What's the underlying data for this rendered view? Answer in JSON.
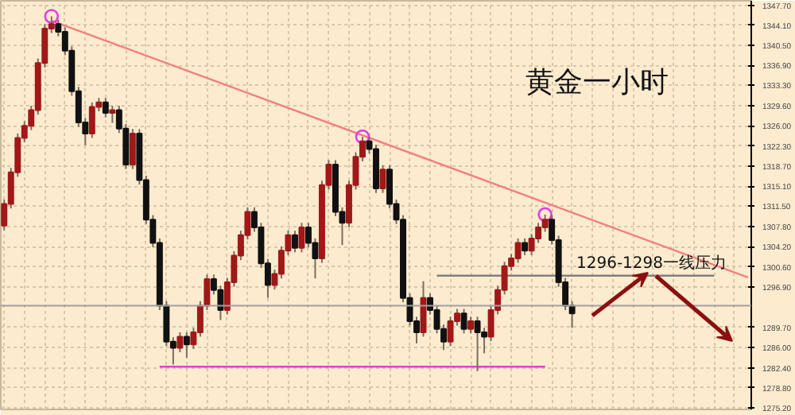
{
  "chart_data": {
    "type": "candlestick",
    "title": "黄金一小时",
    "annotations": [
      "1296-1298一线压力"
    ],
    "categories": [
      null,
      null,
      null,
      null,
      null,
      null,
      null,
      null,
      null,
      null,
      null,
      null,
      null,
      null,
      null,
      null,
      null,
      null,
      null,
      null,
      null,
      null,
      null,
      null,
      null,
      null,
      null,
      null,
      null,
      null,
      null,
      null,
      null,
      null,
      null,
      null,
      null,
      null,
      null,
      null,
      null,
      null,
      null,
      null,
      null,
      null,
      null,
      null,
      null,
      null,
      null,
      null,
      null,
      null,
      null,
      null,
      null,
      null,
      null,
      null,
      null,
      null,
      null,
      null,
      null,
      null,
      null,
      null,
      null,
      null,
      null,
      null,
      null,
      null,
      null,
      null,
      null,
      null,
      null,
      null,
      null,
      null,
      null,
      null,
      null,
      null,
      null,
      null,
      null,
      null,
      null,
      null,
      null,
      null,
      null,
      null,
      null,
      null,
      null,
      null,
      null,
      null,
      null,
      null,
      null,
      null,
      null,
      null,
      null,
      null,
      null
    ],
    "ohlc": [
      [
        1308.0,
        1312.7,
        1307.2,
        1311.9
      ],
      [
        1311.9,
        1318.4,
        1311.1,
        1317.6
      ],
      [
        1317.6,
        1324.6,
        1316.8,
        1323.8
      ],
      [
        1323.8,
        1326.8,
        1323.0,
        1326.0
      ],
      [
        1326.0,
        1329.6,
        1325.2,
        1328.8
      ],
      [
        1328.8,
        1338.1,
        1328.0,
        1337.3
      ],
      [
        1337.3,
        1344.3,
        1336.5,
        1343.5
      ],
      [
        1343.5,
        1345.7,
        1342.7,
        1344.3
      ],
      [
        1344.3,
        1345.1,
        1342.1,
        1342.9
      ],
      [
        1342.9,
        1343.7,
        1338.7,
        1339.5
      ],
      [
        1339.5,
        1340.3,
        1331.4,
        1332.2
      ],
      [
        1332.2,
        1333.0,
        1325.8,
        1326.6
      ],
      [
        1326.6,
        1327.4,
        1322.5,
        1324.6
      ],
      [
        1324.6,
        1330.2,
        1323.8,
        1329.4
      ],
      [
        1329.4,
        1331.0,
        1328.6,
        1330.2
      ],
      [
        1330.2,
        1331.0,
        1327.5,
        1328.3
      ],
      [
        1328.3,
        1329.6,
        1326.5,
        1328.8
      ],
      [
        1328.8,
        1329.6,
        1324.7,
        1325.5
      ],
      [
        1325.5,
        1326.3,
        1318.2,
        1319.0
      ],
      [
        1319.0,
        1325.4,
        1318.2,
        1324.6
      ],
      [
        1324.6,
        1325.4,
        1315.4,
        1316.2
      ],
      [
        1316.2,
        1317.0,
        1308.3,
        1309.1
      ],
      [
        1309.1,
        1309.9,
        1304.1,
        1304.9
      ],
      [
        1304.9,
        1305.7,
        1292.8,
        1293.6
      ],
      [
        1293.6,
        1294.4,
        1286.3,
        1287.1
      ],
      [
        1287.1,
        1287.9,
        1283.0,
        1286.0
      ],
      [
        1286.0,
        1288.8,
        1285.2,
        1288.0
      ],
      [
        1288.0,
        1288.8,
        1284.2,
        1286.6
      ],
      [
        1286.6,
        1289.6,
        1285.8,
        1288.8
      ],
      [
        1288.8,
        1294.4,
        1288.0,
        1293.6
      ],
      [
        1293.6,
        1299.2,
        1292.8,
        1298.4
      ],
      [
        1298.4,
        1299.2,
        1295.6,
        1296.4
      ],
      [
        1296.4,
        1297.2,
        1291.0,
        1292.8
      ],
      [
        1292.8,
        1298.6,
        1292.0,
        1297.8
      ],
      [
        1297.8,
        1303.4,
        1297.0,
        1302.6
      ],
      [
        1302.6,
        1307.1,
        1301.8,
        1306.3
      ],
      [
        1306.3,
        1311.3,
        1305.5,
        1310.5
      ],
      [
        1310.5,
        1311.3,
        1306.9,
        1307.7
      ],
      [
        1307.7,
        1308.5,
        1300.4,
        1301.2
      ],
      [
        1301.2,
        1302.0,
        1295.0,
        1297.3
      ],
      [
        1297.3,
        1300.1,
        1296.5,
        1299.3
      ],
      [
        1299.3,
        1304.3,
        1298.5,
        1303.5
      ],
      [
        1303.5,
        1307.1,
        1302.7,
        1306.3
      ],
      [
        1306.3,
        1307.1,
        1303.2,
        1304.0
      ],
      [
        1304.0,
        1308.5,
        1303.2,
        1307.7
      ],
      [
        1307.7,
        1308.5,
        1304.1,
        1304.9
      ],
      [
        1304.9,
        1305.7,
        1298.5,
        1302.1
      ],
      [
        1302.1,
        1316.1,
        1301.3,
        1315.3
      ],
      [
        1315.3,
        1319.8,
        1314.5,
        1319.0
      ],
      [
        1319.0,
        1319.8,
        1309.7,
        1310.5
      ],
      [
        1310.5,
        1311.3,
        1304.5,
        1308.5
      ],
      [
        1308.5,
        1316.1,
        1307.7,
        1315.3
      ],
      [
        1315.3,
        1321.2,
        1314.5,
        1320.4
      ],
      [
        1320.4,
        1324.0,
        1319.6,
        1323.2
      ],
      [
        1323.2,
        1324.0,
        1321.0,
        1321.8
      ],
      [
        1321.8,
        1322.6,
        1313.9,
        1314.7
      ],
      [
        1314.7,
        1318.9,
        1313.9,
        1318.1
      ],
      [
        1318.1,
        1318.9,
        1311.1,
        1311.9
      ],
      [
        1311.9,
        1312.7,
        1308.3,
        1309.1
      ],
      [
        1309.1,
        1309.9,
        1294.2,
        1295.0
      ],
      [
        1295.0,
        1295.8,
        1290.0,
        1290.8
      ],
      [
        1290.8,
        1291.6,
        1286.8,
        1288.8
      ],
      [
        1288.8,
        1298.0,
        1288.0,
        1295.0
      ],
      [
        1295.0,
        1295.8,
        1292.0,
        1292.8
      ],
      [
        1292.8,
        1293.6,
        1288.6,
        1289.4
      ],
      [
        1289.4,
        1290.2,
        1285.6,
        1287.1
      ],
      [
        1287.1,
        1291.6,
        1286.3,
        1290.8
      ],
      [
        1290.8,
        1293.0,
        1290.0,
        1292.2
      ],
      [
        1292.2,
        1293.0,
        1288.6,
        1289.4
      ],
      [
        1289.4,
        1291.6,
        1288.6,
        1290.8
      ],
      [
        1290.8,
        1291.6,
        1281.8,
        1288.8
      ],
      [
        1288.8,
        1289.6,
        1285.0,
        1288.0
      ],
      [
        1288.0,
        1293.6,
        1287.2,
        1292.8
      ],
      [
        1292.8,
        1297.2,
        1292.0,
        1296.4
      ],
      [
        1296.4,
        1301.5,
        1295.6,
        1300.7
      ],
      [
        1300.7,
        1302.9,
        1299.9,
        1302.1
      ],
      [
        1302.1,
        1305.7,
        1301.3,
        1304.9
      ],
      [
        1304.9,
        1305.7,
        1302.7,
        1303.5
      ],
      [
        1303.5,
        1306.5,
        1302.7,
        1305.7
      ],
      [
        1305.7,
        1308.5,
        1304.9,
        1307.7
      ],
      [
        1307.7,
        1310.0,
        1306.9,
        1309.1
      ],
      [
        1309.1,
        1309.9,
        1304.6,
        1305.4
      ],
      [
        1305.4,
        1306.2,
        1297.0,
        1297.8
      ],
      [
        1297.8,
        1298.6,
        1292.8,
        1293.6
      ],
      [
        1293.6,
        1294.4,
        1289.6,
        1292.2
      ],
      null,
      null,
      null,
      null,
      null,
      null,
      null,
      null,
      null,
      null,
      null,
      null,
      null,
      null,
      null,
      null,
      null,
      null,
      null,
      null,
      null,
      null,
      null,
      null,
      null,
      null
    ],
    "series": [
      {
        "type": "line",
        "color": "#f08080",
        "values": [
          null,
          null,
          null,
          null,
          null,
          null,
          null,
          1344.9,
          null,
          null,
          null,
          null,
          null,
          null,
          null,
          null,
          null,
          null,
          null,
          null,
          null,
          null,
          null,
          null,
          null,
          null,
          null,
          null,
          null,
          null,
          null,
          null,
          null,
          null,
          null,
          null,
          null,
          null,
          null,
          null,
          null,
          null,
          null,
          null,
          null,
          null,
          null,
          null,
          null,
          null,
          null,
          null,
          null,
          null,
          null,
          null,
          null,
          null,
          null,
          null,
          null,
          null,
          null,
          null,
          null,
          null,
          null,
          null,
          null,
          null,
          null,
          null,
          null,
          null,
          null,
          null,
          null,
          null,
          null,
          null,
          null,
          null,
          null,
          null,
          null,
          null,
          null,
          null,
          null,
          null,
          null,
          null,
          null,
          null,
          null,
          null,
          null,
          null,
          null,
          null,
          null,
          null,
          null,
          null,
          null,
          null,
          null,
          null,
          null,
          null,
          1298.7
        ]
      },
      {
        "type": "line",
        "color": "#808080",
        "values": [
          null,
          null,
          null,
          null,
          null,
          null,
          null,
          null,
          null,
          null,
          null,
          null,
          null,
          null,
          null,
          null,
          null,
          null,
          null,
          null,
          null,
          null,
          null,
          null,
          null,
          null,
          null,
          null,
          null,
          null,
          null,
          null,
          null,
          null,
          null,
          null,
          null,
          null,
          null,
          null,
          null,
          null,
          null,
          null,
          null,
          null,
          null,
          null,
          null,
          null,
          null,
          null,
          null,
          null,
          null,
          null,
          null,
          null,
          null,
          null,
          null,
          null,
          null,
          null,
          1299.0,
          null,
          null,
          null,
          null,
          null,
          null,
          null,
          null,
          null,
          null,
          null,
          null,
          null,
          null,
          null,
          null,
          null,
          null,
          null,
          null,
          null,
          null,
          null,
          null,
          null,
          null,
          null,
          null,
          null,
          null,
          null,
          null,
          null,
          null,
          null,
          null,
          null,
          null,
          null,
          null,
          1299.0,
          null,
          null,
          null,
          null,
          null
        ]
      },
      {
        "type": "line",
        "color": "#e040e0",
        "values": [
          null,
          null,
          null,
          null,
          null,
          null,
          null,
          null,
          null,
          null,
          null,
          null,
          null,
          null,
          null,
          null,
          null,
          null,
          null,
          null,
          null,
          null,
          null,
          1282.6,
          null,
          null,
          null,
          null,
          null,
          null,
          null,
          null,
          null,
          null,
          null,
          null,
          null,
          null,
          null,
          null,
          null,
          null,
          null,
          null,
          null,
          null,
          null,
          null,
          null,
          null,
          null,
          null,
          null,
          null,
          null,
          null,
          null,
          null,
          null,
          null,
          null,
          null,
          null,
          null,
          null,
          null,
          null,
          null,
          null,
          null,
          null,
          null,
          null,
          null,
          null,
          null,
          null,
          null,
          null,
          null,
          1282.6,
          null,
          null,
          null,
          null,
          null,
          null,
          null,
          null,
          null,
          null,
          null,
          null,
          null,
          null,
          null,
          null,
          null,
          null,
          null,
          null,
          null,
          null,
          null,
          null,
          null,
          null,
          null,
          null,
          null,
          null
        ]
      },
      {
        "type": "scatter",
        "marker": "circle",
        "color": "#e040e0",
        "values": [
          null,
          null,
          null,
          null,
          null,
          null,
          null,
          1345.7,
          null,
          null,
          null,
          null,
          null,
          null,
          null,
          null,
          null,
          null,
          null,
          null,
          null,
          null,
          null,
          null,
          null,
          null,
          null,
          null,
          null,
          null,
          null,
          null,
          null,
          null,
          null,
          null,
          null,
          null,
          null,
          null,
          null,
          null,
          null,
          null,
          null,
          null,
          null,
          null,
          null,
          null,
          null,
          null,
          null,
          1324.0,
          null,
          null,
          null,
          null,
          null,
          null,
          null,
          null,
          null,
          null,
          null,
          null,
          null,
          null,
          null,
          null,
          null,
          null,
          null,
          null,
          null,
          null,
          null,
          null,
          null,
          null,
          1310.0,
          null,
          null,
          null,
          null,
          null,
          null,
          null,
          null,
          null,
          null,
          null,
          null,
          null,
          null,
          null,
          null,
          null,
          null,
          null,
          null,
          null,
          null,
          null,
          null,
          null,
          null,
          null,
          null,
          null,
          null
        ]
      }
    ],
    "ref_lines": [
      {
        "axis": "y",
        "value": 1293.6,
        "color": "#a0a0a0"
      }
    ],
    "ylim": [
      1274.9,
      1348.5
    ],
    "yticks": [
      {
        "value": 1347.7,
        "label": "1347.70"
      },
      {
        "value": 1344.1,
        "label": "1344.10"
      },
      {
        "value": 1340.5,
        "label": "1340.50"
      },
      {
        "value": 1336.9,
        "label": "1336.90"
      },
      {
        "value": 1333.3,
        "label": "1333.30"
      },
      {
        "value": 1329.6,
        "label": "1329.60"
      },
      {
        "value": 1326.0,
        "label": "1326.00"
      },
      {
        "value": 1322.3,
        "label": "1322.30"
      },
      {
        "value": 1318.7,
        "label": "1318.70"
      },
      {
        "value": 1315.1,
        "label": "1315.10"
      },
      {
        "value": 1311.5,
        "label": "1311.50"
      },
      {
        "value": 1307.8,
        "label": "1307.80"
      },
      {
        "value": 1304.2,
        "label": "1304.20"
      },
      {
        "value": 1300.6,
        "label": "1300.60"
      },
      {
        "value": 1296.9,
        "label": "1296.90"
      },
      {
        "value": 1289.7,
        "label": "1289.70"
      },
      {
        "value": 1286.0,
        "label": "1286.00"
      },
      {
        "value": 1282.4,
        "label": "1282.40"
      },
      {
        "value": 1278.8,
        "label": "1278.80"
      },
      {
        "value": 1275.2,
        "label": "1275.20"
      }
    ],
    "grid": true,
    "tick_labels": "y"
  }
}
